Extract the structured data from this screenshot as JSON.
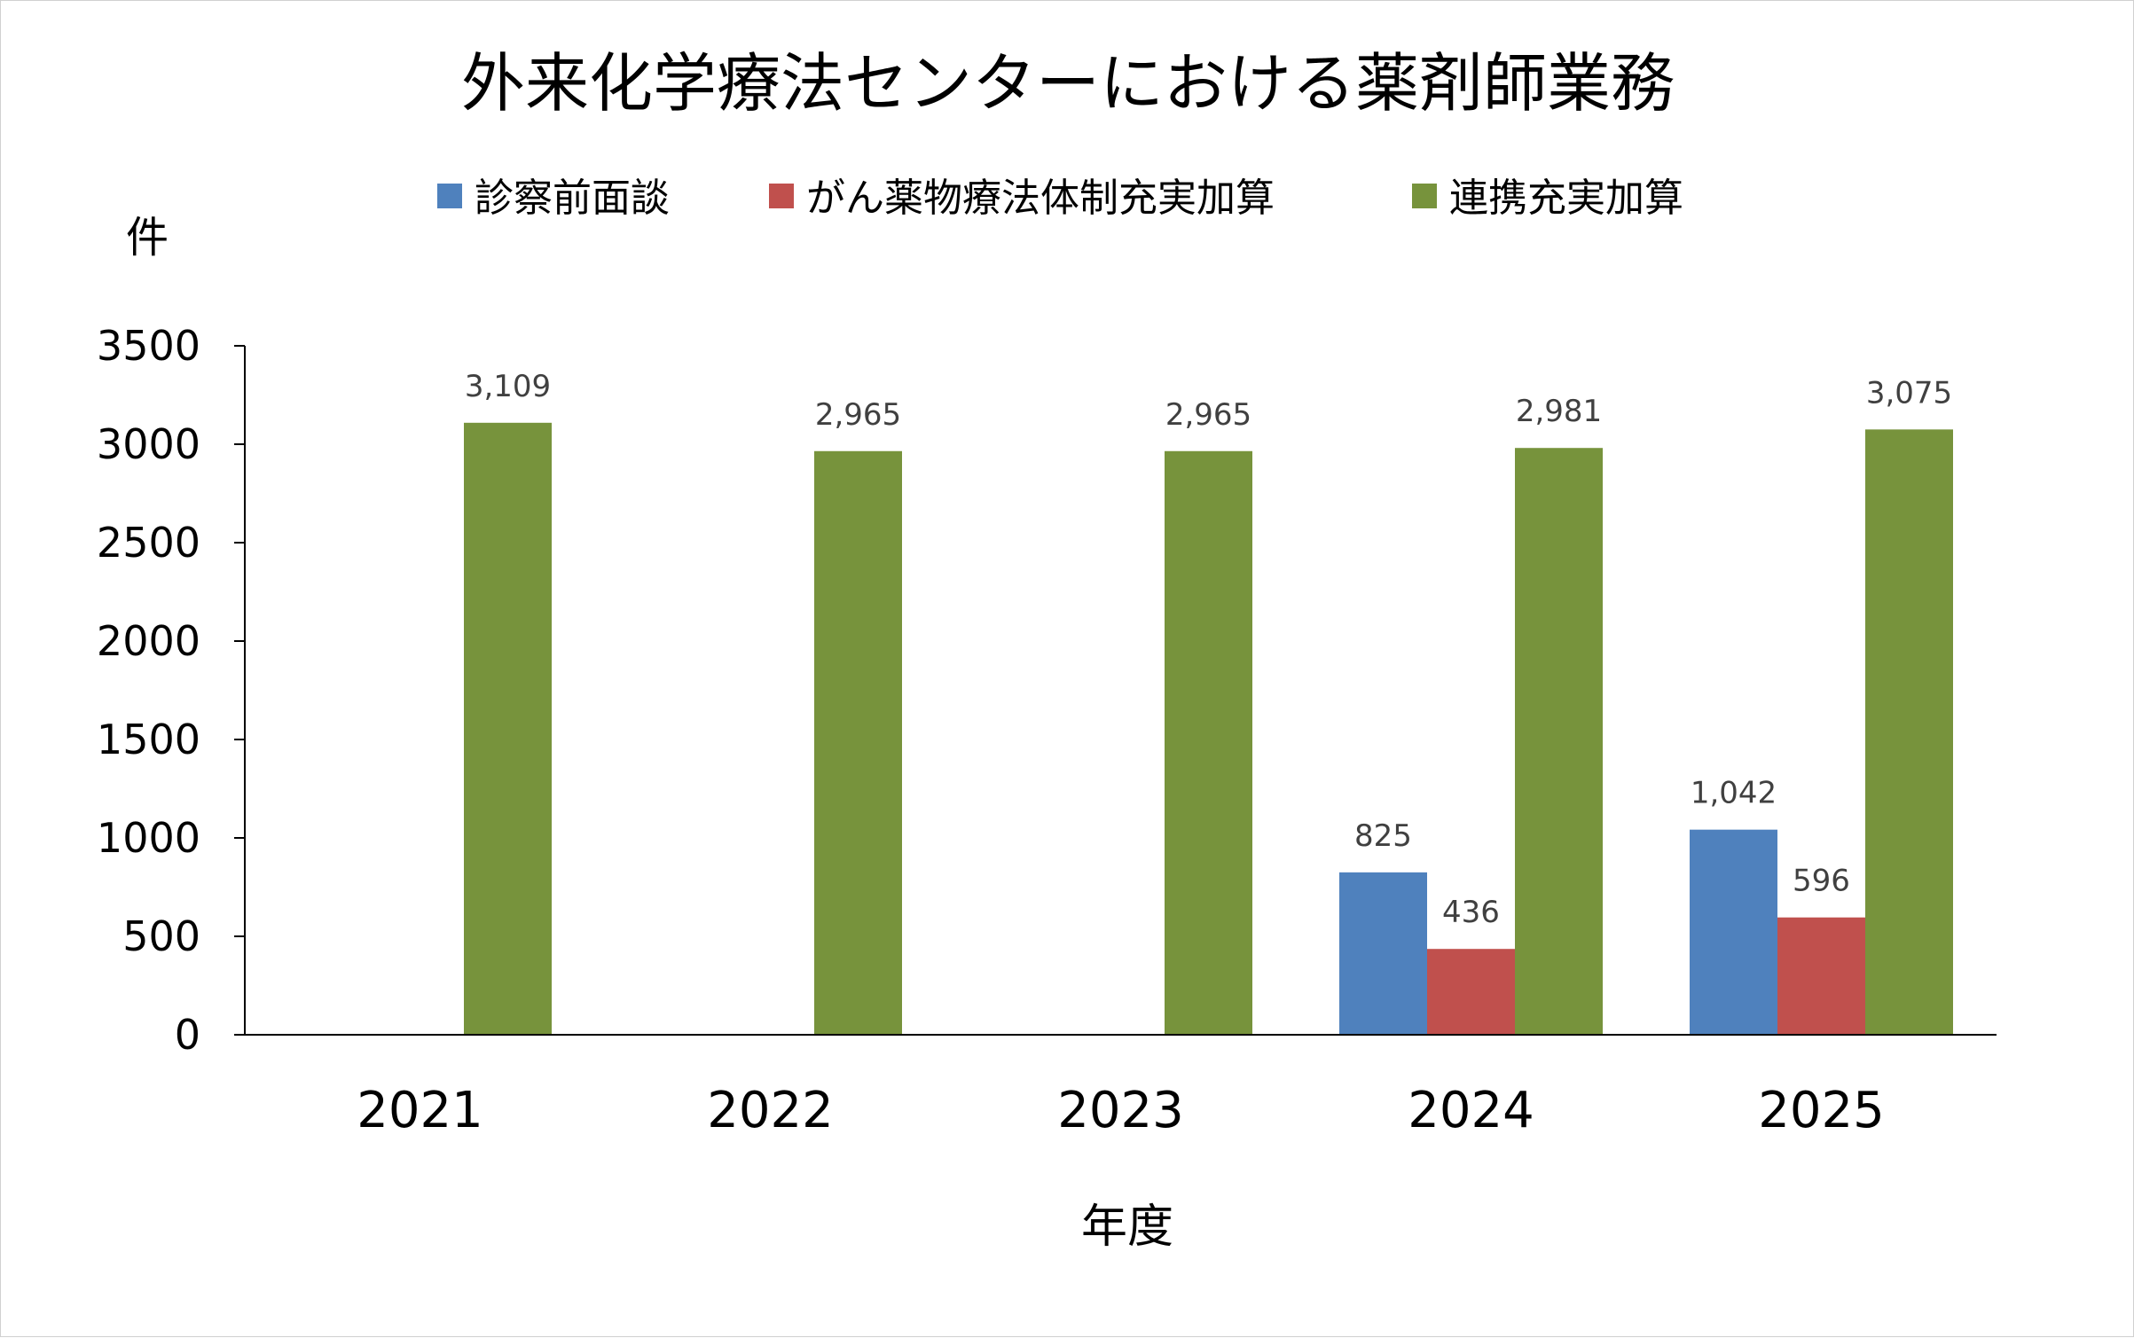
{
  "chart_data": {
    "type": "bar",
    "title": "外来化学療法センターにおける薬剤師業務",
    "ylabel": "件",
    "xlabel": "年度",
    "categories": [
      "2021",
      "2022",
      "2023",
      "2024",
      "2025"
    ],
    "series": [
      {
        "name": "診察前面談",
        "color": "#4f81bd",
        "values": [
          null,
          null,
          null,
          825,
          1042
        ],
        "labels": [
          "",
          "",
          "",
          "825",
          "1,042"
        ]
      },
      {
        "name": "がん薬物療法体制充実加算",
        "color": "#c0504d",
        "values": [
          null,
          null,
          null,
          436,
          596
        ],
        "labels": [
          "",
          "",
          "",
          "436",
          "596"
        ]
      },
      {
        "name": "連携充実加算",
        "color": "#77933c",
        "values": [
          3109,
          2965,
          2965,
          2981,
          3075
        ],
        "labels": [
          "3,109",
          "2,965",
          "2,965",
          "2,981",
          "3,075"
        ]
      }
    ],
    "ylim": [
      0,
      3500
    ],
    "yticks": [
      "0",
      "500",
      "1000",
      "1500",
      "2000",
      "2500",
      "3000",
      "3500"
    ],
    "ytick_values": [
      0,
      500,
      1000,
      1500,
      2000,
      2500,
      3000,
      3500
    ],
    "grid": false,
    "legend_position": "top-center"
  }
}
